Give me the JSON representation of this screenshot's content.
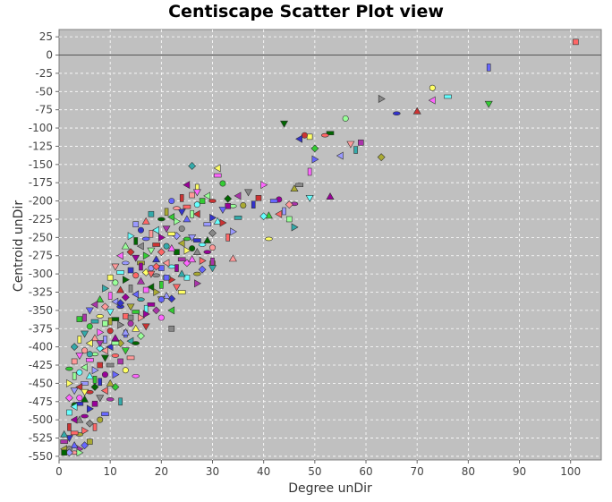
{
  "chart_data": {
    "type": "scatter",
    "title": "Centiscape Scatter Plot view",
    "xlabel": "Degree unDir",
    "ylabel": "Centroid unDir",
    "xlim": [
      0,
      106
    ],
    "ylim": [
      -555,
      35
    ],
    "xticks": [
      0,
      10,
      20,
      30,
      40,
      50,
      60,
      70,
      80,
      90,
      100
    ],
    "yticks": [
      25,
      0,
      -25,
      -50,
      -75,
      -100,
      -125,
      -150,
      -175,
      -200,
      -225,
      -250,
      -275,
      -300,
      -325,
      -350,
      -375,
      -400,
      -425,
      -450,
      -475,
      -500,
      -525,
      -550
    ],
    "grid": true,
    "plot_background": "#c0c0c0",
    "points": [
      [
        101,
        18
      ],
      [
        84,
        -17
      ],
      [
        84,
        -67
      ],
      [
        73,
        -45
      ],
      [
        73,
        -62
      ],
      [
        76,
        -57
      ],
      [
        70,
        -77
      ],
      [
        66,
        -80
      ],
      [
        63,
        -60
      ],
      [
        63,
        -140
      ],
      [
        59,
        -120
      ],
      [
        58,
        -130
      ],
      [
        57,
        -122
      ],
      [
        56,
        -87
      ],
      [
        55,
        -138
      ],
      [
        53,
        -107
      ],
      [
        53,
        -194
      ],
      [
        52,
        -110
      ],
      [
        50,
        -143
      ],
      [
        50,
        -128
      ],
      [
        49,
        -112
      ],
      [
        49,
        -160
      ],
      [
        49,
        -196
      ],
      [
        48,
        -110
      ],
      [
        47,
        -115
      ],
      [
        47,
        -178
      ],
      [
        46,
        -183
      ],
      [
        46,
        -204
      ],
      [
        46,
        -236
      ],
      [
        45,
        -205
      ],
      [
        45,
        -225
      ],
      [
        44,
        -214
      ],
      [
        44,
        -94
      ],
      [
        43,
        -198
      ],
      [
        43,
        -218
      ],
      [
        42,
        -200
      ],
      [
        41,
        -220
      ],
      [
        41,
        -252
      ],
      [
        40,
        -178
      ],
      [
        40,
        -221
      ],
      [
        39,
        -196
      ],
      [
        38,
        -205
      ],
      [
        37,
        -188
      ],
      [
        36,
        -206
      ],
      [
        35,
        -193
      ],
      [
        35,
        -223
      ],
      [
        34,
        -279
      ],
      [
        34,
        -207
      ],
      [
        34,
        -242
      ],
      [
        33,
        -197
      ],
      [
        33,
        -207
      ],
      [
        33,
        -250
      ],
      [
        32,
        -212
      ],
      [
        32,
        -176
      ],
      [
        31,
        -155
      ],
      [
        31,
        -165
      ],
      [
        31,
        -228
      ],
      [
        30,
        -200
      ],
      [
        30,
        -223
      ],
      [
        30,
        -244
      ],
      [
        30,
        -286
      ],
      [
        30,
        -283
      ],
      [
        30,
        -292
      ],
      [
        30,
        -264
      ],
      [
        29,
        -193
      ],
      [
        29,
        -232
      ],
      [
        29,
        -254
      ],
      [
        29,
        -270
      ],
      [
        28,
        -282
      ],
      [
        28,
        -294
      ],
      [
        28,
        -200
      ],
      [
        27,
        -182
      ],
      [
        27,
        -188
      ],
      [
        27,
        -205
      ],
      [
        27,
        -218
      ],
      [
        27,
        -254
      ],
      [
        27,
        -270
      ],
      [
        27,
        -300
      ],
      [
        27,
        -313
      ],
      [
        26,
        -152
      ],
      [
        26,
        -192
      ],
      [
        26,
        -218
      ],
      [
        26,
        -250
      ],
      [
        26,
        -265
      ],
      [
        25,
        -178
      ],
      [
        25,
        -208
      ],
      [
        25,
        -225
      ],
      [
        25,
        -252
      ],
      [
        25,
        -268
      ],
      [
        25,
        -285
      ],
      [
        25,
        -305
      ],
      [
        24,
        -196
      ],
      [
        24,
        -215
      ],
      [
        24,
        -238
      ],
      [
        24,
        -258
      ],
      [
        24,
        -280
      ],
      [
        24,
        -300
      ],
      [
        23,
        -210
      ],
      [
        23,
        -228
      ],
      [
        23,
        -248
      ],
      [
        23,
        -270
      ],
      [
        23,
        -292
      ],
      [
        23,
        -318
      ],
      [
        22,
        -200
      ],
      [
        22,
        -222
      ],
      [
        22,
        -245
      ],
      [
        22,
        -265
      ],
      [
        22,
        -290
      ],
      [
        22,
        -308
      ],
      [
        22,
        -334
      ],
      [
        22,
        -375
      ],
      [
        21,
        -215
      ],
      [
        21,
        -238
      ],
      [
        21,
        -262
      ],
      [
        21,
        -285
      ],
      [
        21,
        -305
      ],
      [
        21,
        -330
      ],
      [
        20,
        -225
      ],
      [
        20,
        -250
      ],
      [
        20,
        -270
      ],
      [
        20,
        -292
      ],
      [
        20,
        -315
      ],
      [
        20,
        -335
      ],
      [
        20,
        -360
      ],
      [
        19,
        -240
      ],
      [
        19,
        -260
      ],
      [
        19,
        -280
      ],
      [
        19,
        -302
      ],
      [
        19,
        -325
      ],
      [
        19,
        -350
      ],
      [
        18,
        -218
      ],
      [
        18,
        -245
      ],
      [
        18,
        -268
      ],
      [
        18,
        -292
      ],
      [
        18,
        -318
      ],
      [
        18,
        -342
      ],
      [
        17,
        -228
      ],
      [
        17,
        -252
      ],
      [
        17,
        -275
      ],
      [
        17,
        -298
      ],
      [
        17,
        -322
      ],
      [
        17,
        -348
      ],
      [
        17,
        -372
      ],
      [
        16,
        -240
      ],
      [
        16,
        -262
      ],
      [
        16,
        -285
      ],
      [
        16,
        -310
      ],
      [
        16,
        -335
      ],
      [
        16,
        -360
      ],
      [
        16,
        -385
      ],
      [
        15,
        -232
      ],
      [
        15,
        -255
      ],
      [
        15,
        -278
      ],
      [
        15,
        -302
      ],
      [
        15,
        -328
      ],
      [
        15,
        -352
      ],
      [
        15,
        -375
      ],
      [
        15,
        -440
      ],
      [
        14,
        -248
      ],
      [
        14,
        -270
      ],
      [
        14,
        -295
      ],
      [
        14,
        -320
      ],
      [
        14,
        -345
      ],
      [
        14,
        -368
      ],
      [
        14,
        -392
      ],
      [
        14,
        -415
      ],
      [
        13,
        -262
      ],
      [
        13,
        -285
      ],
      [
        13,
        -308
      ],
      [
        13,
        -332
      ],
      [
        13,
        -358
      ],
      [
        13,
        -382
      ],
      [
        13,
        -405
      ],
      [
        13,
        -432
      ],
      [
        12,
        -275
      ],
      [
        12,
        -298
      ],
      [
        12,
        -322
      ],
      [
        12,
        -345
      ],
      [
        12,
        -370
      ],
      [
        12,
        -395
      ],
      [
        12,
        -420
      ],
      [
        12,
        -475
      ],
      [
        11,
        -290
      ],
      [
        11,
        -312
      ],
      [
        11,
        -338
      ],
      [
        11,
        -362
      ],
      [
        11,
        -388
      ],
      [
        11,
        -412
      ],
      [
        11,
        -438
      ],
      [
        11,
        -455
      ],
      [
        10,
        -305
      ],
      [
        10,
        -330
      ],
      [
        10,
        -352
      ],
      [
        10,
        -378
      ],
      [
        10,
        -400
      ],
      [
        10,
        -425
      ],
      [
        10,
        -450
      ],
      [
        10,
        -472
      ],
      [
        9,
        -320
      ],
      [
        9,
        -345
      ],
      [
        9,
        -368
      ],
      [
        9,
        -390
      ],
      [
        9,
        -415
      ],
      [
        9,
        -438
      ],
      [
        9,
        -460
      ],
      [
        9,
        -492
      ],
      [
        8,
        -335
      ],
      [
        8,
        -358
      ],
      [
        8,
        -380
      ],
      [
        8,
        -402
      ],
      [
        8,
        -425
      ],
      [
        8,
        -448
      ],
      [
        8,
        -470
      ],
      [
        8,
        -500
      ],
      [
        7,
        -342
      ],
      [
        7,
        -365
      ],
      [
        7,
        -388
      ],
      [
        7,
        -410
      ],
      [
        7,
        -432
      ],
      [
        7,
        -455
      ],
      [
        7,
        -478
      ],
      [
        7,
        -510
      ],
      [
        6,
        -350
      ],
      [
        6,
        -372
      ],
      [
        6,
        -395
      ],
      [
        6,
        -418
      ],
      [
        6,
        -440
      ],
      [
        6,
        -462
      ],
      [
        6,
        -485
      ],
      [
        6,
        -505
      ],
      [
        6,
        -530
      ],
      [
        5,
        -360
      ],
      [
        5,
        -382
      ],
      [
        5,
        -405
      ],
      [
        5,
        -428
      ],
      [
        5,
        -450
      ],
      [
        5,
        -472
      ],
      [
        5,
        -495
      ],
      [
        5,
        -515
      ],
      [
        5,
        -535
      ],
      [
        4,
        -362
      ],
      [
        4,
        -390
      ],
      [
        4,
        -412
      ],
      [
        4,
        -435
      ],
      [
        4,
        -455
      ],
      [
        4,
        -478
      ],
      [
        4,
        -500
      ],
      [
        4,
        -520
      ],
      [
        4,
        -540
      ],
      [
        3,
        -400
      ],
      [
        3,
        -420
      ],
      [
        3,
        -440
      ],
      [
        3,
        -460
      ],
      [
        3,
        -480
      ],
      [
        3,
        -500
      ],
      [
        3,
        -518
      ],
      [
        3,
        -535
      ],
      [
        2,
        -430
      ],
      [
        2,
        -450
      ],
      [
        2,
        -470
      ],
      [
        2,
        -490
      ],
      [
        2,
        -510
      ],
      [
        2,
        -525
      ],
      [
        2,
        -540
      ],
      [
        1,
        -540
      ],
      [
        1,
        -530
      ],
      [
        1,
        -520
      ],
      [
        3,
        -545
      ],
      [
        4,
        -545
      ],
      [
        2,
        -545
      ],
      [
        1,
        -545
      ],
      [
        16,
        -290
      ],
      [
        18,
        -300
      ],
      [
        20,
        -335
      ],
      [
        22,
        -350
      ],
      [
        24,
        -325
      ],
      [
        26,
        -280
      ],
      [
        28,
        -260
      ],
      [
        32,
        -230
      ],
      [
        12,
        -340
      ],
      [
        14,
        -360
      ],
      [
        10,
        -365
      ],
      [
        8,
        -395
      ],
      [
        6,
        -410
      ],
      [
        9,
        -405
      ],
      [
        11,
        -395
      ],
      [
        13,
        -380
      ],
      [
        15,
        -395
      ],
      [
        17,
        -355
      ],
      [
        19,
        -290
      ],
      [
        21,
        -305
      ],
      [
        7,
        -445
      ],
      [
        5,
        -462
      ],
      [
        4,
        -470
      ],
      [
        3,
        -482
      ]
    ]
  }
}
